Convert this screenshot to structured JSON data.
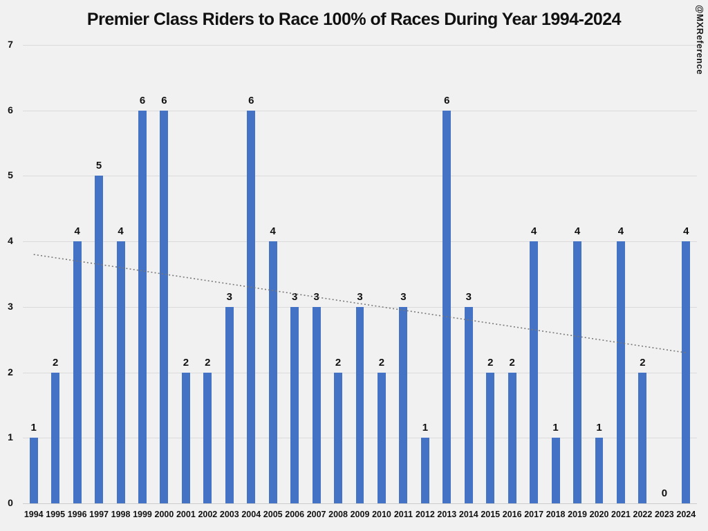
{
  "title": "Premier Class Riders to Race 100% of Races During Year 1994-2024",
  "watermark": "@MXReference",
  "colors": {
    "background": "#f1f1f1",
    "bar": "#4472c4",
    "gridline": "#dadada",
    "trendline": "#787878",
    "text": "#111111"
  },
  "chart_data": {
    "type": "bar",
    "title": "Premier Class Riders to Race 100% of Races During Year 1994-2024",
    "categories": [
      "1994",
      "1995",
      "1996",
      "1997",
      "1998",
      "1999",
      "2000",
      "2001",
      "2002",
      "2003",
      "2004",
      "2005",
      "2006",
      "2007",
      "2008",
      "2009",
      "2010",
      "2011",
      "2012",
      "2013",
      "2014",
      "2015",
      "2016",
      "2017",
      "2018",
      "2019",
      "2020",
      "2021",
      "2022",
      "2023",
      "2024"
    ],
    "values": [
      1,
      2,
      4,
      5,
      4,
      6,
      6,
      2,
      2,
      3,
      6,
      4,
      3,
      3,
      2,
      3,
      2,
      3,
      1,
      6,
      3,
      2,
      2,
      4,
      1,
      4,
      1,
      4,
      2,
      0,
      4
    ],
    "data_labels": true,
    "xlabel": "",
    "ylabel": "",
    "ylim": [
      0,
      7
    ],
    "yticks": [
      0,
      1,
      2,
      3,
      4,
      5,
      6,
      7
    ],
    "grid": true,
    "legend": false,
    "trendline": {
      "style": "dotted",
      "start_value": 3.8,
      "end_value": 2.3
    }
  }
}
